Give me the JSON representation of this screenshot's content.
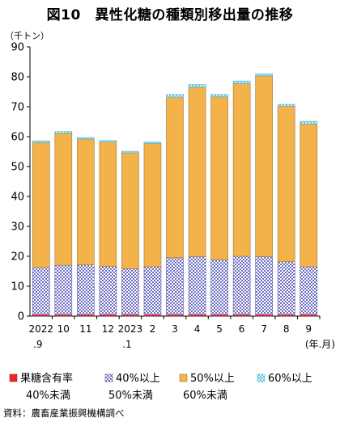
{
  "chart_data": {
    "type": "bar",
    "stacked": true,
    "title": "図10　異性化糖の種類別移出量の推移",
    "unit_label": "（千トン）",
    "x_unit_label": "(年.月)",
    "categories": [
      [
        "2022",
        ".9"
      ],
      [
        "10",
        ""
      ],
      [
        "11",
        ""
      ],
      [
        "12",
        ""
      ],
      [
        "2023",
        ".1"
      ],
      [
        "2",
        ""
      ],
      [
        "3",
        ""
      ],
      [
        "4",
        ""
      ],
      [
        "5",
        ""
      ],
      [
        "6",
        ""
      ],
      [
        "7",
        ""
      ],
      [
        "8",
        ""
      ],
      [
        "9",
        ""
      ]
    ],
    "ylim": [
      0,
      90
    ],
    "yticks": [
      0,
      10,
      20,
      30,
      40,
      50,
      60,
      70,
      80,
      90
    ],
    "grid": false,
    "legend_position": "bottom",
    "series": [
      {
        "name": [
          "果糖含有率",
          "40%未満"
        ],
        "color": "#e8272b",
        "pattern": "solid",
        "values": [
          0.5,
          0.5,
          0.5,
          0.5,
          0.5,
          0.5,
          0.5,
          0.5,
          0.5,
          0.5,
          0.5,
          0.5,
          0.5
        ]
      },
      {
        "name": [
          "40%以上",
          "50%未満"
        ],
        "color": "#6d6fc4",
        "pattern": "check",
        "values": [
          15.8,
          16.5,
          16.6,
          16.1,
          15.3,
          16.0,
          19.0,
          19.4,
          18.3,
          19.5,
          19.4,
          17.7,
          16.0
        ]
      },
      {
        "name": [
          "50%以上",
          "60%未満"
        ],
        "color": "#f3b24a",
        "pattern": "solid",
        "values": [
          41.7,
          44.1,
          42.1,
          41.6,
          38.8,
          41.2,
          53.7,
          56.6,
          54.5,
          57.7,
          60.4,
          52.0,
          47.7
        ]
      },
      {
        "name": [
          "60%以上",
          ""
        ],
        "color": "#7fd0e6",
        "pattern": "cross",
        "values": [
          0.6,
          0.6,
          0.5,
          0.5,
          0.5,
          0.5,
          0.9,
          0.9,
          0.8,
          0.9,
          0.7,
          0.6,
          0.9
        ]
      }
    ]
  },
  "source": "資料：農畜産業振興機構調べ"
}
